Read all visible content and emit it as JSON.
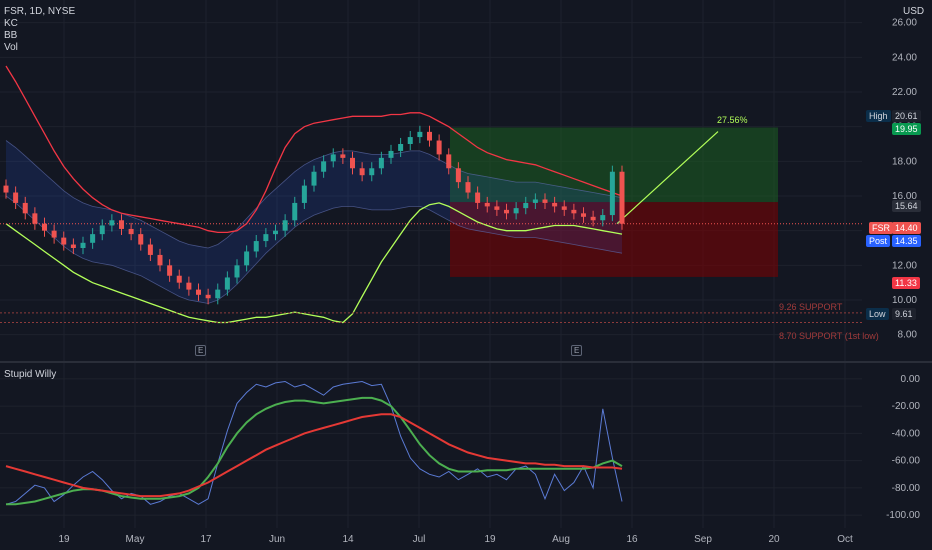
{
  "header": {
    "symbol_line": "FSR, 1D, NYSE",
    "indicators": [
      "KC",
      "BB",
      "Vol"
    ],
    "currency": "USD"
  },
  "colors": {
    "background": "#131722",
    "grid": "#1e222d",
    "up_candle": "#26a69a",
    "down_candle": "#ef5350",
    "kc_band": "#2962ff",
    "bb_upper": "#f23645",
    "bb_lower": "#b2ff59",
    "profit_zone": "#1b5e20",
    "loss_zone": "#7f0000",
    "osc_blue": "#5b7bd5",
    "osc_green": "#4caf50",
    "osc_red": "#e53935"
  },
  "price_tags": {
    "high_label": "High",
    "high_value": "20.61",
    "target_value": "19.95",
    "mid_value": "15.64",
    "last_label": "FSR",
    "last_value": "14.40",
    "post_label": "Post",
    "post_value": "14.35",
    "stop_value": "11.33",
    "low_label": "Low",
    "low_value": "9.61"
  },
  "annotations": {
    "target_pct": "27.56%",
    "support_1": "9.26 SUPPORT",
    "support_2": "8.70 SUPPORT (1st low)",
    "earnings_marker": "E"
  },
  "oscillator": {
    "name": "Stupid Willy",
    "yticks": [
      "0.00",
      "-20.00",
      "-40.00",
      "-60.00",
      "-80.00",
      "-100.00"
    ]
  },
  "chart_data": {
    "type": "line",
    "title": "FSR, 1D, NYSE",
    "price_axis": {
      "ticks": [
        26,
        24,
        22,
        20,
        18,
        16,
        14,
        12,
        10,
        8
      ],
      "ylim": [
        7,
        26.5
      ]
    },
    "time_axis": {
      "ticks": [
        "19",
        "May",
        "17",
        "Jun",
        "14",
        "Jul",
        "19",
        "Aug",
        "16",
        "Sep",
        "20",
        "Oct"
      ]
    },
    "close_series": [
      16.2,
      15.6,
      15.0,
      14.4,
      14.0,
      13.6,
      13.2,
      13.0,
      13.3,
      13.8,
      14.3,
      14.6,
      14.1,
      13.8,
      13.2,
      12.6,
      12.0,
      11.4,
      11.0,
      10.6,
      10.3,
      10.1,
      10.6,
      11.3,
      12.0,
      12.8,
      13.4,
      13.8,
      14.0,
      14.6,
      15.6,
      16.6,
      17.4,
      18.0,
      18.4,
      18.2,
      17.6,
      17.2,
      17.6,
      18.2,
      18.6,
      19.0,
      19.4,
      19.7,
      19.2,
      18.4,
      17.6,
      16.8,
      16.2,
      15.6,
      15.4,
      15.2,
      15.0,
      15.3,
      15.6,
      15.8,
      15.6,
      15.4,
      15.2,
      15.0,
      14.8,
      14.6,
      14.9,
      17.4,
      14.4
    ],
    "kc_upper": [
      19.2,
      18.8,
      18.3,
      17.8,
      17.3,
      16.8,
      16.3,
      15.9,
      15.6,
      15.4,
      15.3,
      15.2,
      15.0,
      14.8,
      14.6,
      14.3,
      14.0,
      13.7,
      13.4,
      13.2,
      13.1,
      13.0,
      13.2,
      13.6,
      14.1,
      14.7,
      15.3,
      15.9,
      16.4,
      16.9,
      17.4,
      17.8,
      18.1,
      18.3,
      18.5,
      18.6,
      18.6,
      18.5,
      18.4,
      18.4,
      18.4,
      18.5,
      18.6,
      18.6,
      18.4,
      18.1,
      17.8,
      17.5,
      17.3,
      17.2,
      17.1,
      17.0,
      16.9,
      16.8,
      16.8,
      16.8,
      16.7,
      16.6,
      16.5,
      16.4,
      16.3,
      16.2,
      16.1,
      16.0,
      15.9
    ],
    "kc_lower": [
      16.0,
      15.6,
      15.1,
      14.6,
      14.1,
      13.6,
      13.1,
      12.7,
      12.4,
      12.2,
      12.1,
      12.0,
      11.8,
      11.6,
      11.4,
      11.1,
      10.8,
      10.5,
      10.2,
      10.0,
      9.9,
      9.8,
      10.0,
      10.4,
      10.9,
      11.5,
      12.1,
      12.7,
      13.2,
      13.7,
      14.2,
      14.6,
      14.9,
      15.1,
      15.3,
      15.4,
      15.4,
      15.3,
      15.2,
      15.2,
      15.2,
      15.3,
      15.4,
      15.4,
      15.2,
      14.9,
      14.6,
      14.3,
      14.1,
      14.0,
      13.9,
      13.8,
      13.7,
      13.6,
      13.6,
      13.6,
      13.5,
      13.4,
      13.3,
      13.2,
      13.1,
      13.0,
      12.9,
      12.8,
      12.7
    ],
    "bb_upper": [
      23.5,
      22.6,
      21.6,
      20.6,
      19.6,
      18.6,
      17.7,
      17.0,
      16.4,
      15.9,
      15.5,
      15.2,
      15.0,
      14.9,
      14.8,
      14.7,
      14.6,
      14.5,
      14.4,
      14.3,
      14.2,
      14.0,
      13.9,
      13.9,
      14.0,
      14.4,
      15.2,
      16.3,
      17.6,
      18.8,
      19.6,
      20.0,
      20.2,
      20.3,
      20.4,
      20.5,
      20.6,
      20.6,
      20.6,
      20.6,
      20.7,
      20.7,
      20.8,
      20.8,
      20.6,
      20.3,
      20.0,
      19.6,
      19.2,
      18.8,
      18.5,
      18.3,
      18.1,
      18.0,
      17.9,
      17.8,
      17.6,
      17.4,
      17.2,
      17.0,
      16.8,
      16.6,
      16.4,
      16.2,
      16.0
    ],
    "bb_lower": [
      14.4,
      14.0,
      13.6,
      13.2,
      12.8,
      12.4,
      12.0,
      11.6,
      11.3,
      11.0,
      10.8,
      10.6,
      10.4,
      10.2,
      10.0,
      9.8,
      9.6,
      9.4,
      9.2,
      9.0,
      8.9,
      8.8,
      8.7,
      8.7,
      8.8,
      8.9,
      9.0,
      9.0,
      9.1,
      9.2,
      9.3,
      9.2,
      9.1,
      9.0,
      8.8,
      8.7,
      9.2,
      10.2,
      11.2,
      12.2,
      13.0,
      13.8,
      14.6,
      15.2,
      15.5,
      15.6,
      15.4,
      15.1,
      14.8,
      14.5,
      14.3,
      14.1,
      14.0,
      14.0,
      14.0,
      14.1,
      14.2,
      14.3,
      14.3,
      14.3,
      14.2,
      14.1,
      14.0,
      13.9,
      13.8
    ],
    "trade_setup": {
      "entry": 14.4,
      "target": 19.95,
      "stop": 11.33,
      "target_pct": 27.56
    },
    "support_levels": [
      9.26,
      8.7
    ],
    "oscillator_ylim": [
      -105,
      5
    ],
    "oscillator_series": [
      {
        "name": "",
        "values": [
          -92,
          -90,
          -84,
          -78,
          -80,
          -90,
          -85,
          -78,
          -72,
          -68,
          -74,
          -82,
          -88,
          -84,
          -86,
          -92,
          -90,
          -86,
          -84,
          -88,
          -92,
          -88,
          -62,
          -38,
          -18,
          -10,
          -4,
          -6,
          -3,
          -2,
          -6,
          -4,
          -8,
          -12,
          -6,
          -4,
          -3,
          -2,
          -5,
          -4,
          -20,
          -42,
          -58,
          -66,
          -70,
          -72,
          -68,
          -74,
          -70,
          -66,
          -72,
          -70,
          -74,
          -66,
          -64,
          -70,
          -88,
          -70,
          -82,
          -76,
          -64,
          -80,
          -22,
          -58,
          -90
        ]
      },
      {
        "name": "",
        "values": [
          -92,
          -92,
          -91,
          -90,
          -88,
          -86,
          -84,
          -82,
          -81,
          -81,
          -82,
          -84,
          -86,
          -87,
          -88,
          -88,
          -88,
          -87,
          -86,
          -84,
          -80,
          -72,
          -62,
          -50,
          -40,
          -32,
          -26,
          -22,
          -19,
          -17,
          -16,
          -16,
          -17,
          -18,
          -17,
          -16,
          -15,
          -14,
          -14,
          -16,
          -20,
          -28,
          -38,
          -48,
          -56,
          -62,
          -66,
          -68,
          -68,
          -68,
          -67,
          -67,
          -67,
          -66,
          -66,
          -66,
          -66,
          -66,
          -66,
          -66,
          -66,
          -65,
          -62,
          -60,
          -64
        ]
      },
      {
        "name": "",
        "values": [
          -64,
          -66,
          -68,
          -70,
          -72,
          -74,
          -76,
          -78,
          -80,
          -81,
          -82,
          -83,
          -84,
          -85,
          -86,
          -86,
          -86,
          -85,
          -84,
          -82,
          -79,
          -76,
          -72,
          -68,
          -64,
          -60,
          -56,
          -52,
          -49,
          -46,
          -43,
          -40,
          -38,
          -36,
          -34,
          -32,
          -30,
          -28,
          -27,
          -26,
          -26,
          -28,
          -32,
          -36,
          -40,
          -44,
          -48,
          -51,
          -54,
          -56,
          -58,
          -59,
          -60,
          -61,
          -62,
          -62,
          -63,
          -63,
          -64,
          -64,
          -64,
          -65,
          -65,
          -65,
          -66
        ]
      }
    ]
  }
}
